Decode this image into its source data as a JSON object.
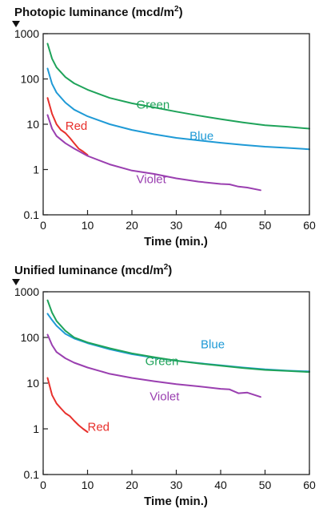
{
  "chart_data": [
    {
      "type": "line",
      "title": "Photopic luminance (mcd/m",
      "title_superscript": "2",
      "title_suffix": ")",
      "xlabel": "Time (min.)",
      "xlim": [
        0,
        60
      ],
      "ylim": [
        0.1,
        1000
      ],
      "yscale": "log",
      "xticks": [
        0,
        10,
        20,
        30,
        40,
        50,
        60
      ],
      "xtick_labels": [
        "0",
        "10",
        "20",
        "30",
        "40",
        "50",
        "60"
      ],
      "yticks": [
        0.1,
        1,
        10,
        100,
        1000
      ],
      "ytick_labels": [
        "0.1",
        "1",
        "10",
        "100",
        "1000"
      ],
      "grid": false,
      "series": [
        {
          "name": "Green",
          "color": "#1fa35a",
          "label_at": [
            21,
            22
          ],
          "x": [
            1,
            2,
            3,
            5,
            7,
            10,
            15,
            20,
            25,
            30,
            35,
            40,
            45,
            50,
            55,
            60
          ],
          "y": [
            600,
            280,
            180,
            110,
            80,
            58,
            38,
            29,
            23.5,
            19,
            15.5,
            13,
            11,
            9.5,
            8.8,
            8
          ]
        },
        {
          "name": "Blue",
          "color": "#1f9ad6",
          "label_at": [
            33,
            4.5
          ],
          "x": [
            1,
            2,
            3,
            5,
            7,
            10,
            15,
            20,
            25,
            30,
            35,
            40,
            45,
            50,
            55,
            60
          ],
          "y": [
            170,
            78,
            50,
            30,
            21,
            15,
            10,
            7.5,
            6,
            5,
            4.4,
            3.9,
            3.5,
            3.2,
            3,
            2.8
          ]
        },
        {
          "name": "Red",
          "color": "#e8302c",
          "label_at": [
            5,
            7.5
          ],
          "x": [
            1,
            2,
            3,
            4,
            5,
            6,
            7,
            8,
            9,
            10
          ],
          "y": [
            38,
            17,
            10,
            7.5,
            6.4,
            5,
            3.8,
            2.9,
            2.5,
            2.1
          ]
        },
        {
          "name": "Violet",
          "color": "#9a3fb0",
          "label_at": [
            21,
            0.5
          ],
          "x": [
            1,
            2,
            3,
            5,
            7,
            10,
            15,
            20,
            25,
            30,
            35,
            40,
            42,
            44,
            46,
            49
          ],
          "y": [
            16,
            8,
            5.5,
            3.8,
            2.9,
            2,
            1.3,
            0.95,
            0.8,
            0.64,
            0.54,
            0.48,
            0.47,
            0.42,
            0.4,
            0.35
          ]
        }
      ]
    },
    {
      "type": "line",
      "title": "Unified luminance (mcd/m",
      "title_superscript": "2",
      "title_suffix": ")",
      "xlabel": "Time (min.)",
      "xlim": [
        0,
        60
      ],
      "ylim": [
        0.1,
        1000
      ],
      "yscale": "log",
      "xticks": [
        0,
        10,
        20,
        30,
        40,
        50,
        60
      ],
      "xtick_labels": [
        "0",
        "10",
        "20",
        "30",
        "40",
        "50",
        "60"
      ],
      "yticks": [
        0.1,
        1,
        10,
        100,
        1000
      ],
      "ytick_labels": [
        "0.1",
        "1",
        "10",
        "100",
        "1000"
      ],
      "grid": false,
      "series": [
        {
          "name": "Blue",
          "color": "#1f9ad6",
          "label_at": [
            35.5,
            58
          ],
          "x": [
            1,
            2,
            3,
            5,
            7,
            10,
            15,
            20,
            25,
            30,
            35,
            40,
            45,
            50,
            55,
            60
          ],
          "y": [
            330,
            240,
            180,
            120,
            95,
            75,
            55,
            43,
            36,
            31,
            27.5,
            24.5,
            22,
            20,
            18.8,
            18
          ]
        },
        {
          "name": "Green",
          "color": "#1fa35a",
          "label_at": [
            23,
            25
          ],
          "x": [
            1,
            2,
            3,
            5,
            7,
            10,
            15,
            20,
            25,
            30,
            35,
            40,
            45,
            50,
            55,
            60
          ],
          "y": [
            650,
            350,
            230,
            140,
            100,
            78,
            58,
            45,
            37,
            31,
            27,
            24,
            21.5,
            19.5,
            18.5,
            17.5
          ]
        },
        {
          "name": "Violet",
          "color": "#9a3fb0",
          "label_at": [
            24,
            4.2
          ],
          "x": [
            1,
            2,
            3,
            5,
            7,
            10,
            15,
            20,
            25,
            30,
            35,
            40,
            42,
            44,
            46,
            49
          ],
          "y": [
            115,
            68,
            48,
            35,
            28,
            22,
            16,
            13,
            11,
            9.5,
            8.5,
            7.5,
            7.3,
            6,
            6.2,
            5
          ]
        },
        {
          "name": "Red",
          "color": "#e8302c",
          "label_at": [
            10,
            0.9
          ],
          "x": [
            1,
            2,
            3,
            4,
            5,
            6,
            7,
            8,
            9,
            10
          ],
          "y": [
            13,
            5.5,
            3.6,
            2.8,
            2.2,
            1.9,
            1.5,
            1.2,
            1,
            0.85
          ]
        }
      ]
    }
  ]
}
